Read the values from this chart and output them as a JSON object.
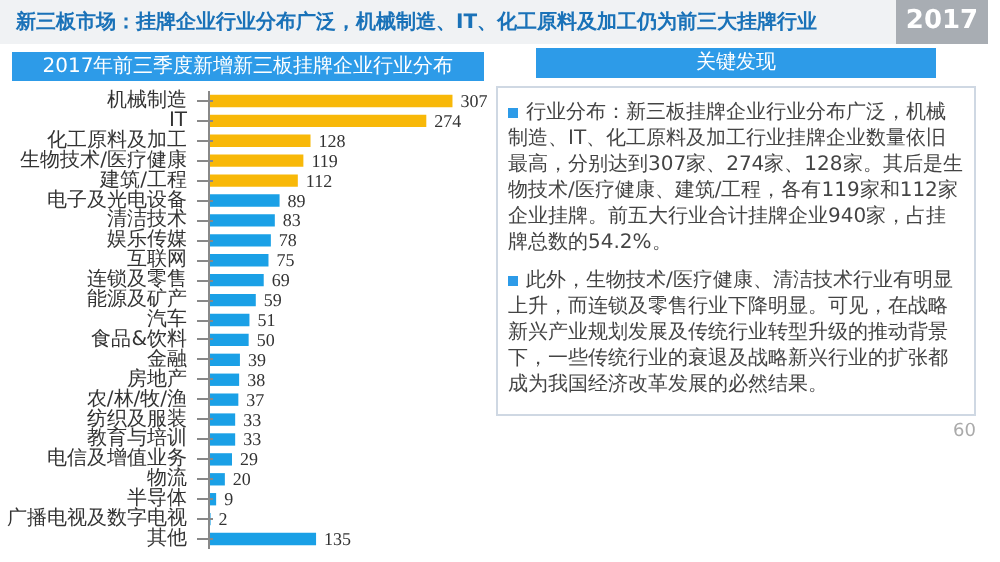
{
  "chart_data": {
    "type": "bar",
    "orientation": "horizontal",
    "title": "新三板市场：挂牌企业行业分布广泛，机械制造、IT、化工原料及加工仍为前三大挂牌行业",
    "subtitle": "2017年前三季度新增新三板挂牌企业行业分布",
    "categories": [
      "机械制造",
      "IT",
      "化工原料及加工",
      "生物技术/医疗健康",
      "建筑/工程",
      "电子及光电设备",
      "清洁技术",
      "娱乐传媒",
      "互联网",
      "连锁及零售",
      "能源及矿产",
      "汽车",
      "食品&饮料",
      "金融",
      "房地产",
      "农/林/牧/渔",
      "纺织及服装",
      "教育与培训",
      "电信及增值业务",
      "物流",
      "半导体",
      "广播电视及数字电视",
      "其他"
    ],
    "values": [
      307,
      274,
      128,
      119,
      112,
      89,
      83,
      78,
      75,
      69,
      59,
      51,
      50,
      39,
      38,
      37,
      33,
      33,
      29,
      20,
      9,
      2,
      135
    ],
    "colors": [
      "#f8b808",
      "#f8b808",
      "#f8b808",
      "#f8b808",
      "#f8b808",
      "#1aa0e6",
      "#1aa0e6",
      "#1aa0e6",
      "#1aa0e6",
      "#1aa0e6",
      "#1aa0e6",
      "#1aa0e6",
      "#1aa0e6",
      "#1aa0e6",
      "#1aa0e6",
      "#1aa0e6",
      "#1aa0e6",
      "#1aa0e6",
      "#1aa0e6",
      "#1aa0e6",
      "#1aa0e6",
      "#1aa0e6",
      "#1aa0e6"
    ],
    "data_labels": true,
    "annotations": [
      "关键发现",
      "行业分布：新三板挂牌企业行业分布广泛，机械制造、IT、化工原料及加工行业挂牌企业数量依旧最高，分别达到307家、274家、128家。其后是生物技术/医疗健康、建筑/工程，各有119家和112家企业挂牌。前五大行业合计挂牌企业940家，占挂牌总数的54.2%。",
      "此外，生物技术/医疗健康、清洁技术行业有明显上升，而连锁及零售行业下降明显。可见，在战略新兴产业规划发展及传统行业转型升级的推动背景下，一些传统行业的衰退及战略新兴行业的扩张都成为我国经济改革发展的必然结果。",
      "2017",
      "60"
    ]
  }
}
